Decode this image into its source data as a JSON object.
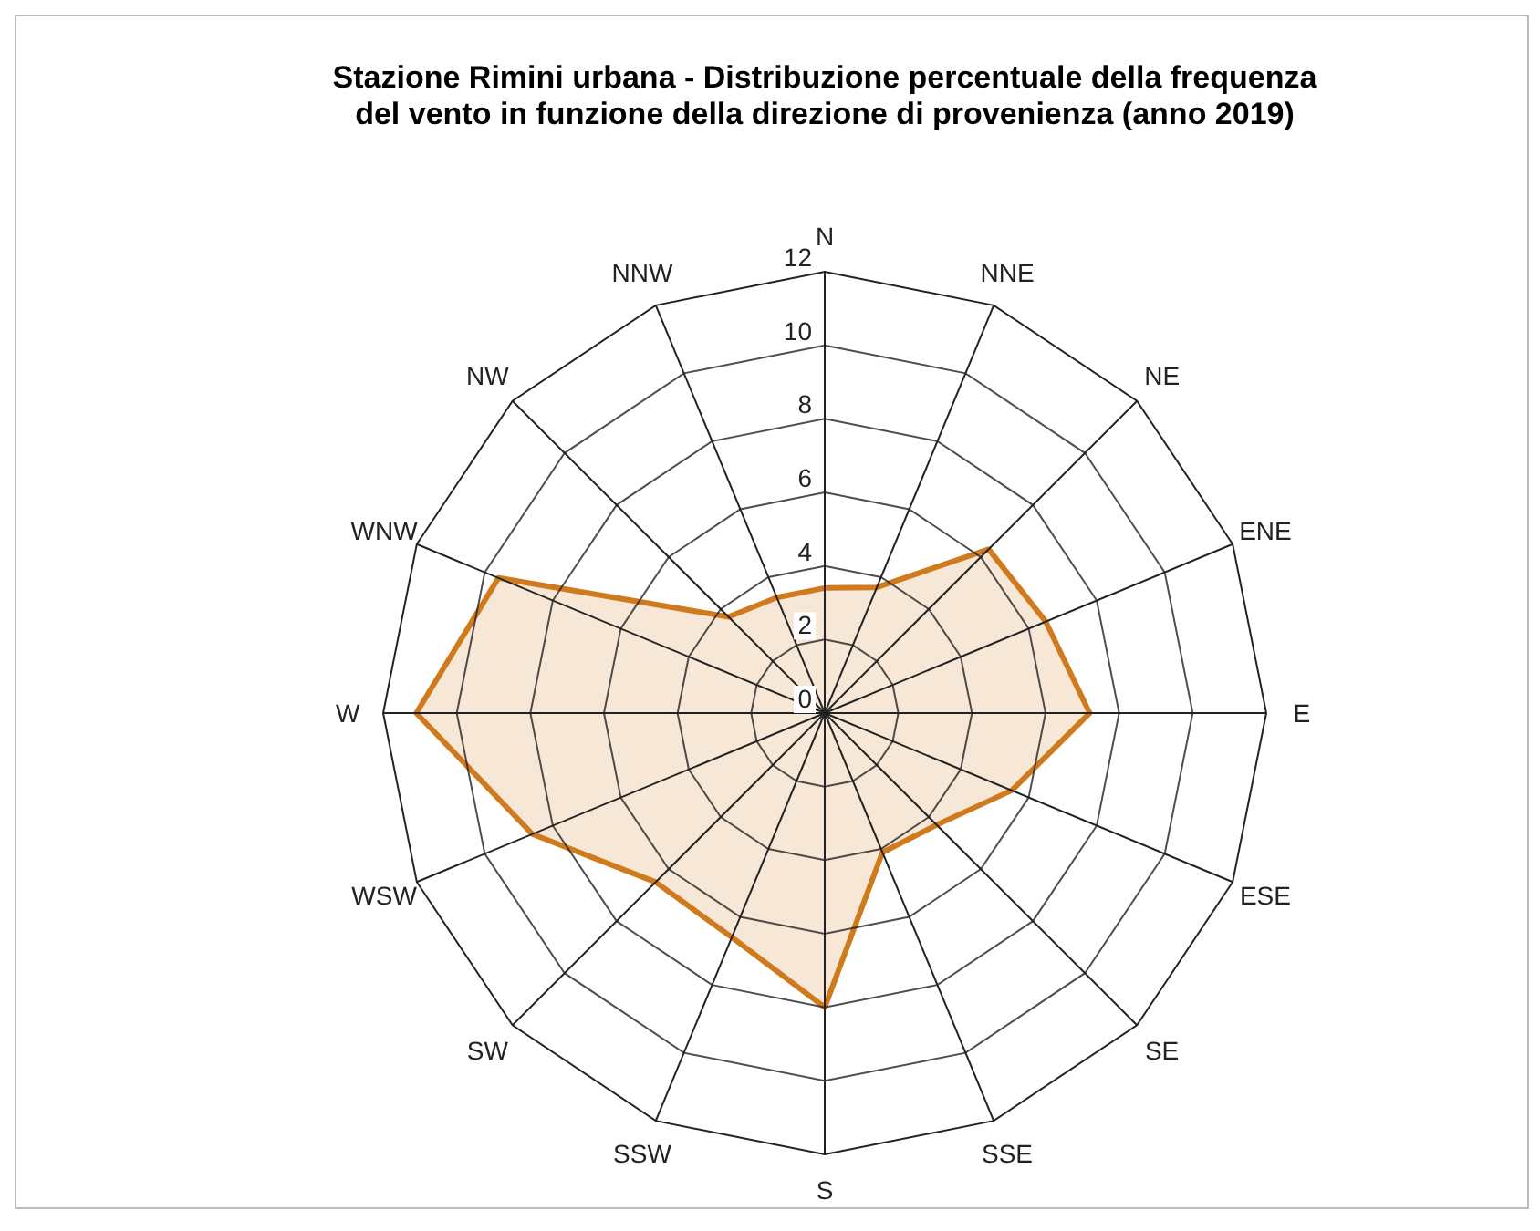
{
  "chart_data": {
    "type": "radar",
    "title": "Stazione Rimini urbana - Distribuzione percentuale della frequenza\ndel vento in funzione della direzione di provenienza (anno 2019)",
    "categories": [
      "N",
      "NNE",
      "NE",
      "ENE",
      "E",
      "ESE",
      "SE",
      "SSE",
      "S",
      "SSW",
      "SW",
      "WSW",
      "W",
      "WNW",
      "NW",
      "NNW"
    ],
    "ylim": [
      0,
      12
    ],
    "yticks": [
      0,
      2,
      4,
      6,
      8,
      10,
      12
    ],
    "series": [
      {
        "color": "#d07a1e",
        "values": [
          3.4,
          3.7,
          6.3,
          6.5,
          7.2,
          5.5,
          4.3,
          4.1,
          8.0,
          6.6,
          6.5,
          8.6,
          11.1,
          9.6,
          3.7,
          3.4
        ]
      }
    ]
  }
}
